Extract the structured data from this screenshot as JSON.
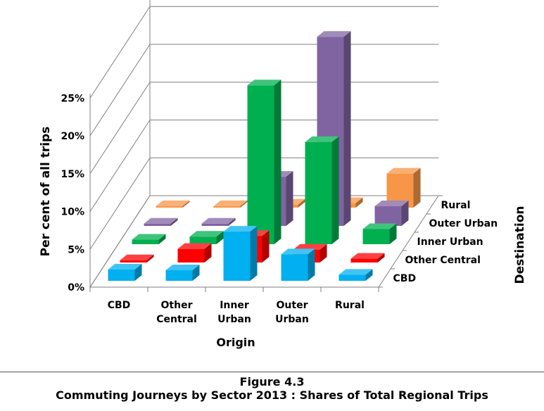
{
  "caption": {
    "figure_label": "Figure 4.3",
    "figure_title": "Commuting Journeys by Sector 2013 : Shares of Total Regional Trips"
  },
  "chart_data": {
    "type": "bar",
    "subtype": "3d-column",
    "ylabel": "Per cent of all trips",
    "xlabel": "Origin",
    "zlabel": "Destination",
    "ylim": [
      0,
      25
    ],
    "yticks": [
      "0%",
      "5%",
      "10%",
      "15%",
      "20%",
      "25%"
    ],
    "categories": [
      [
        "CBD"
      ],
      [
        "Other",
        "Central"
      ],
      [
        "Inner",
        "Urban"
      ],
      [
        "Outer",
        "Urban"
      ],
      [
        "Rural"
      ]
    ],
    "grid": true,
    "series": [
      {
        "name": "CBD",
        "color": "#00B0F0",
        "values": [
          1.5,
          1.4,
          6.5,
          3.5,
          0.8
        ]
      },
      {
        "name": "Other Central",
        "color": "#FF0000",
        "values": [
          0.3,
          1.8,
          3.5,
          1.7,
          0.5
        ]
      },
      {
        "name": "Inner Urban",
        "color": "#00B050",
        "values": [
          0.6,
          1.0,
          21.0,
          13.5,
          2.0
        ]
      },
      {
        "name": "Outer Urban",
        "color": "#8064A2",
        "values": [
          0.3,
          0.3,
          6.5,
          25.0,
          2.6
        ]
      },
      {
        "name": "Rural",
        "color": "#F79646",
        "values": [
          0.2,
          0.2,
          0.4,
          0.6,
          4.5
        ]
      }
    ]
  }
}
